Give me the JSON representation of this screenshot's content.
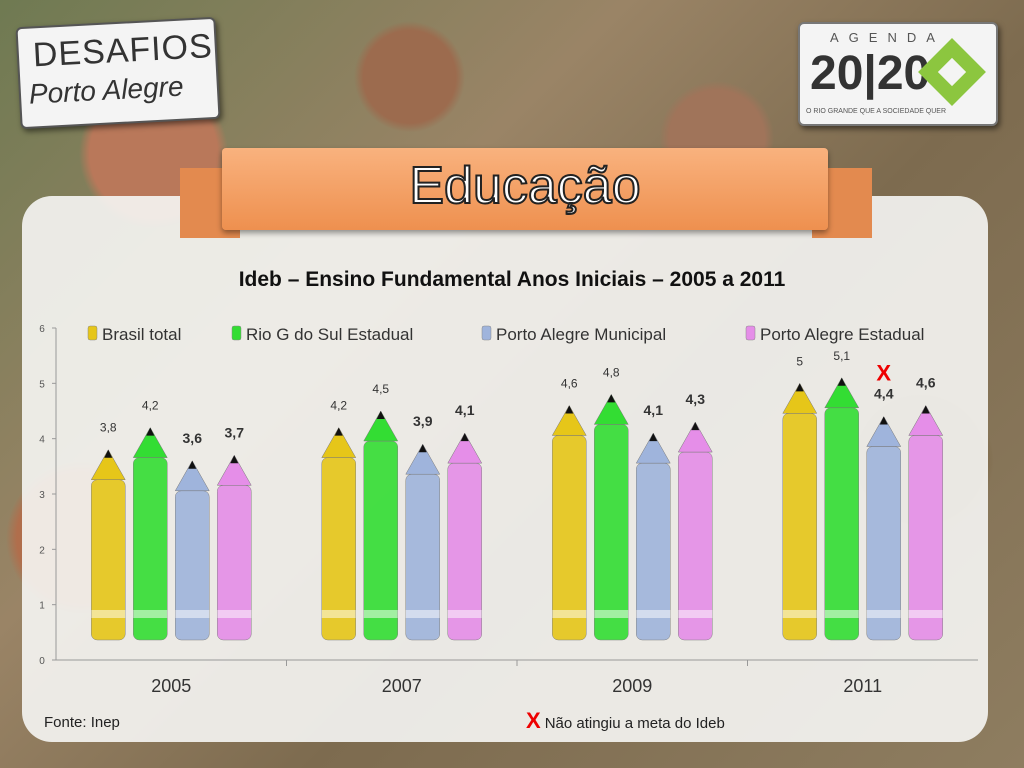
{
  "logos": {
    "left_line1": "DESAFIOS",
    "left_line2": "Porto Alegre",
    "right_top": "AGENDA",
    "right_year": "20|20",
    "right_sub": "O RIO GRANDE QUE A SOCIEDADE QUER"
  },
  "banner_title": "Educação",
  "chart_data": {
    "type": "bar",
    "title": "Ideb – Ensino Fundamental Anos Iniciais – 2005 a 2011",
    "categories": [
      "2005",
      "2007",
      "2009",
      "2011"
    ],
    "ylim": [
      0,
      6
    ],
    "y_ticks": [
      "0",
      "1",
      "2",
      "3",
      "4",
      "5",
      "6"
    ],
    "legend_position": "top",
    "series": [
      {
        "name": "Brasil total",
        "color": "#e6c619",
        "values": [
          3.8,
          4.2,
          4.6,
          5
        ],
        "labels": [
          "3,8",
          "4,2",
          "4,6",
          "5"
        ]
      },
      {
        "name": "Rio G do Sul Estadual",
        "color": "#33dd33",
        "values": [
          4.2,
          4.5,
          4.8,
          5.1
        ],
        "labels": [
          "4,2",
          "4,5",
          "4,8",
          "5,1"
        ]
      },
      {
        "name": "Porto Alegre Municipal",
        "color": "#9fb4dc",
        "values": [
          3.6,
          3.9,
          4.1,
          4.4
        ],
        "labels": [
          "3,6",
          "3,9",
          "4,1",
          "4,4"
        ]
      },
      {
        "name": "Porto Alegre Estadual",
        "color": "#e58ee8",
        "values": [
          3.7,
          4.1,
          4.3,
          4.6
        ],
        "labels": [
          "3,7",
          "4,1",
          "4,3",
          "4,6"
        ]
      }
    ],
    "annotation": {
      "text": "X",
      "category": "2011",
      "series": "Porto Alegre Municipal"
    }
  },
  "footer": {
    "source": "Fonte: Inep",
    "note_mark": "X",
    "note_text": "Não atingiu a meta do Ideb"
  }
}
